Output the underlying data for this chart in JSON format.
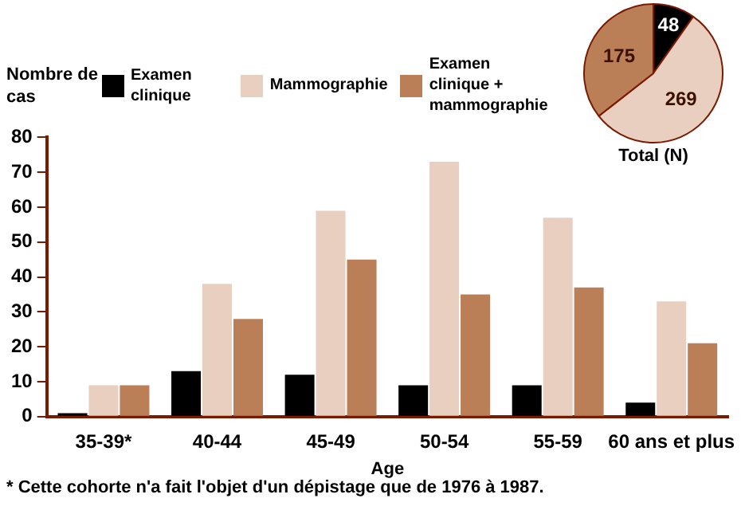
{
  "chart_data": [
    {
      "type": "bar",
      "ylabel": "Nombre de cas",
      "xlabel": "Age",
      "categories": [
        "35-39*",
        "40-44",
        "45-49",
        "50-54",
        "55-59",
        "60 ans et plus"
      ],
      "series": [
        {
          "name": "Examen clinique",
          "color": "#000000",
          "values": [
            1,
            13,
            12,
            9,
            9,
            4
          ]
        },
        {
          "name": "Mammographie",
          "color": "#e8cfc0",
          "values": [
            9,
            38,
            59,
            73,
            57,
            33
          ]
        },
        {
          "name": "Examen clinique + mammographie",
          "color": "#bb7f57",
          "values": [
            9,
            28,
            45,
            35,
            37,
            21
          ]
        }
      ],
      "ylim": [
        0,
        80
      ],
      "yticks": [
        0,
        10,
        20,
        30,
        40,
        50,
        60,
        70,
        80
      ],
      "grid": false,
      "legend": "top",
      "annotations": [
        "* Cette cohorte n'a fait l'objet d'un dépistage que de 1976 à 1987."
      ]
    },
    {
      "type": "pie",
      "title": "Total (N)",
      "categories": [
        null,
        null,
        null
      ],
      "values": [
        48,
        269,
        175
      ],
      "colors": [
        "#000000",
        "#e8cfc0",
        "#bb7f57"
      ],
      "data_labels": true
    }
  ]
}
